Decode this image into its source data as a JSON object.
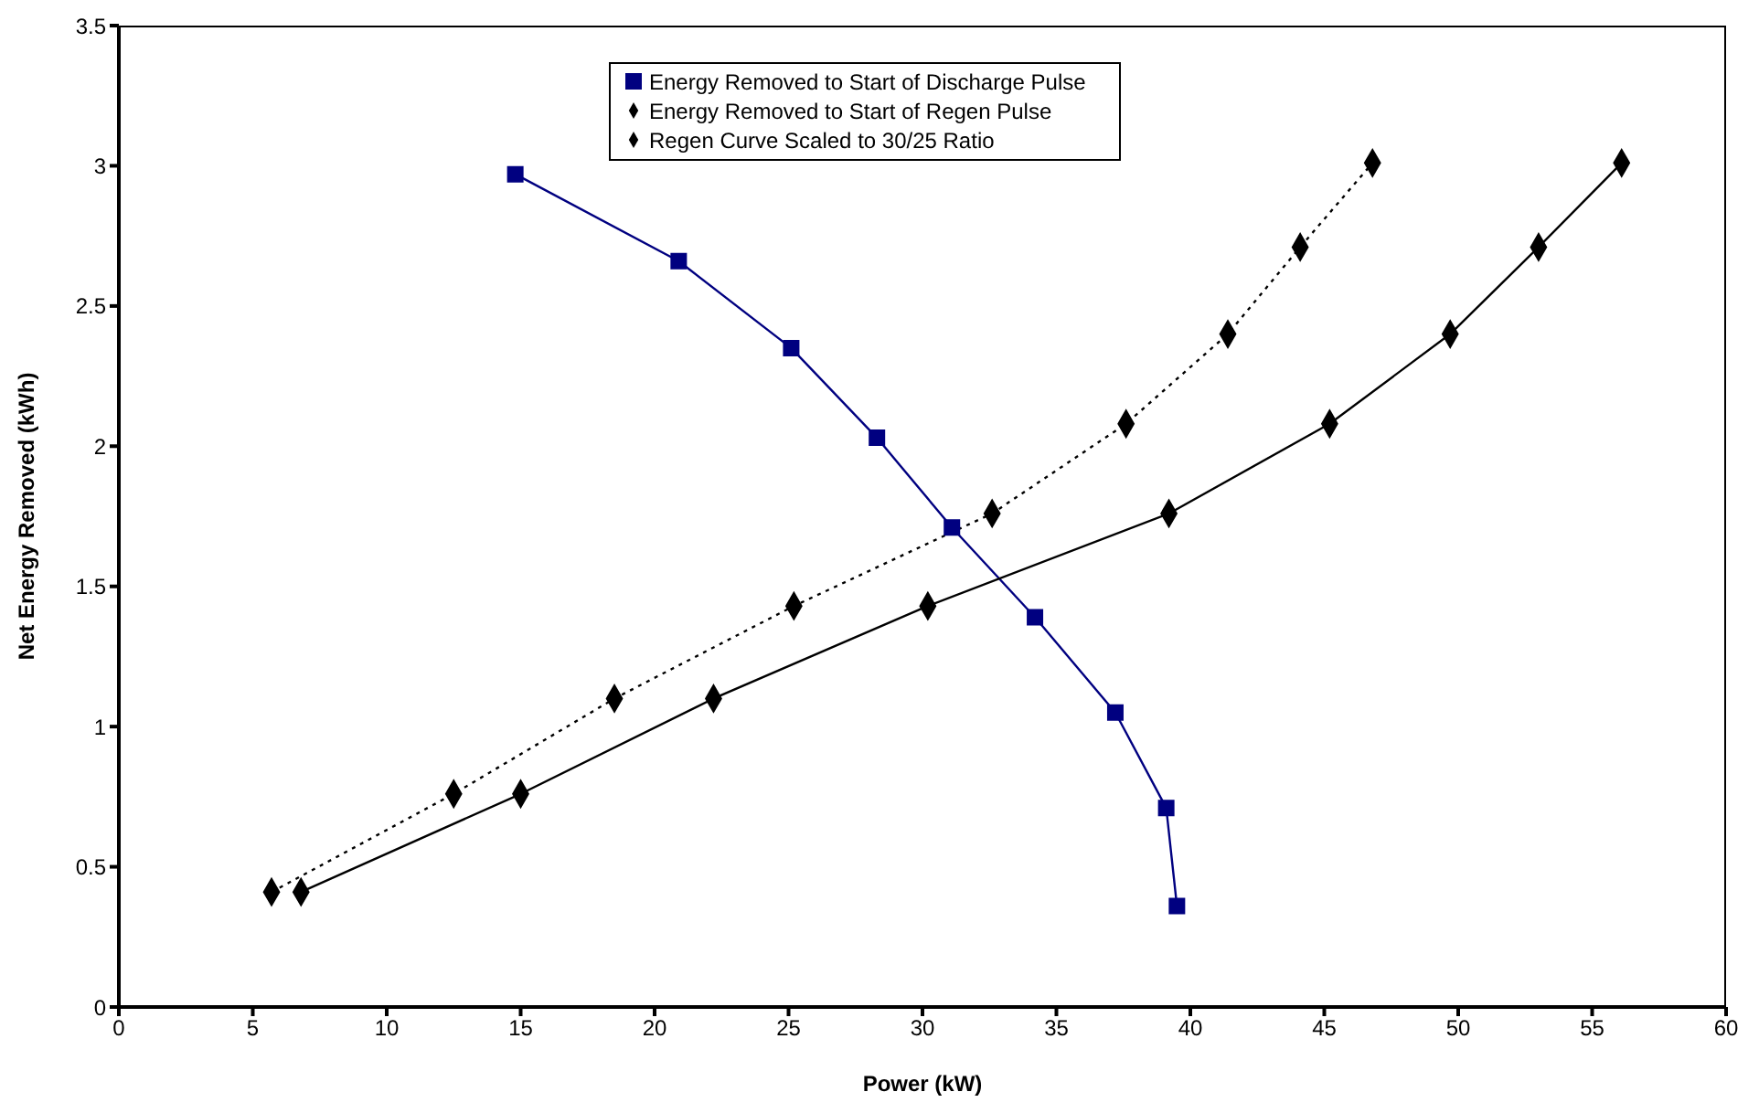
{
  "chart_data": {
    "type": "line",
    "xlabel": "Power (kW)",
    "ylabel": "Net Energy Removed (kWh)",
    "xlim": [
      0,
      60
    ],
    "xticks": [
      0,
      5,
      10,
      15,
      20,
      25,
      30,
      35,
      40,
      45,
      50,
      55,
      60
    ],
    "ylim": [
      0,
      3.5
    ],
    "yticks": [
      0,
      0.5,
      1,
      1.5,
      2,
      2.5,
      3,
      3.5
    ],
    "grid": false,
    "legend": "top",
    "series": [
      {
        "name": "Energy Removed to Start of Discharge Pulse",
        "color": "#000080",
        "marker": "square",
        "line_style": "solid",
        "x": [
          14.8,
          20.9,
          25.1,
          28.3,
          31.1,
          34.2,
          37.2,
          39.1,
          39.5
        ],
        "values": [
          2.97,
          2.66,
          2.35,
          2.03,
          1.71,
          1.39,
          1.05,
          0.71,
          0.36
        ]
      },
      {
        "name": "Energy Removed to Start of Regen Pulse",
        "color": "#000000",
        "marker": "diamond",
        "line_style": "solid",
        "x": [
          6.8,
          15,
          22.2,
          30.2,
          39.2,
          45.2,
          49.7,
          53,
          56.1
        ],
        "values": [
          0.41,
          0.76,
          1.1,
          1.43,
          1.76,
          2.08,
          2.4,
          2.71,
          3.01
        ]
      },
      {
        "name": "Regen Curve Scaled to 30/25 Ratio",
        "color": "#000000",
        "marker": "diamond",
        "line_style": "dotted",
        "x": [
          5.7,
          12.5,
          18.5,
          25.2,
          32.6,
          37.6,
          41.4,
          44.1,
          46.8
        ],
        "values": [
          0.41,
          0.76,
          1.1,
          1.43,
          1.76,
          2.08,
          2.4,
          2.71,
          3.01
        ]
      }
    ]
  }
}
